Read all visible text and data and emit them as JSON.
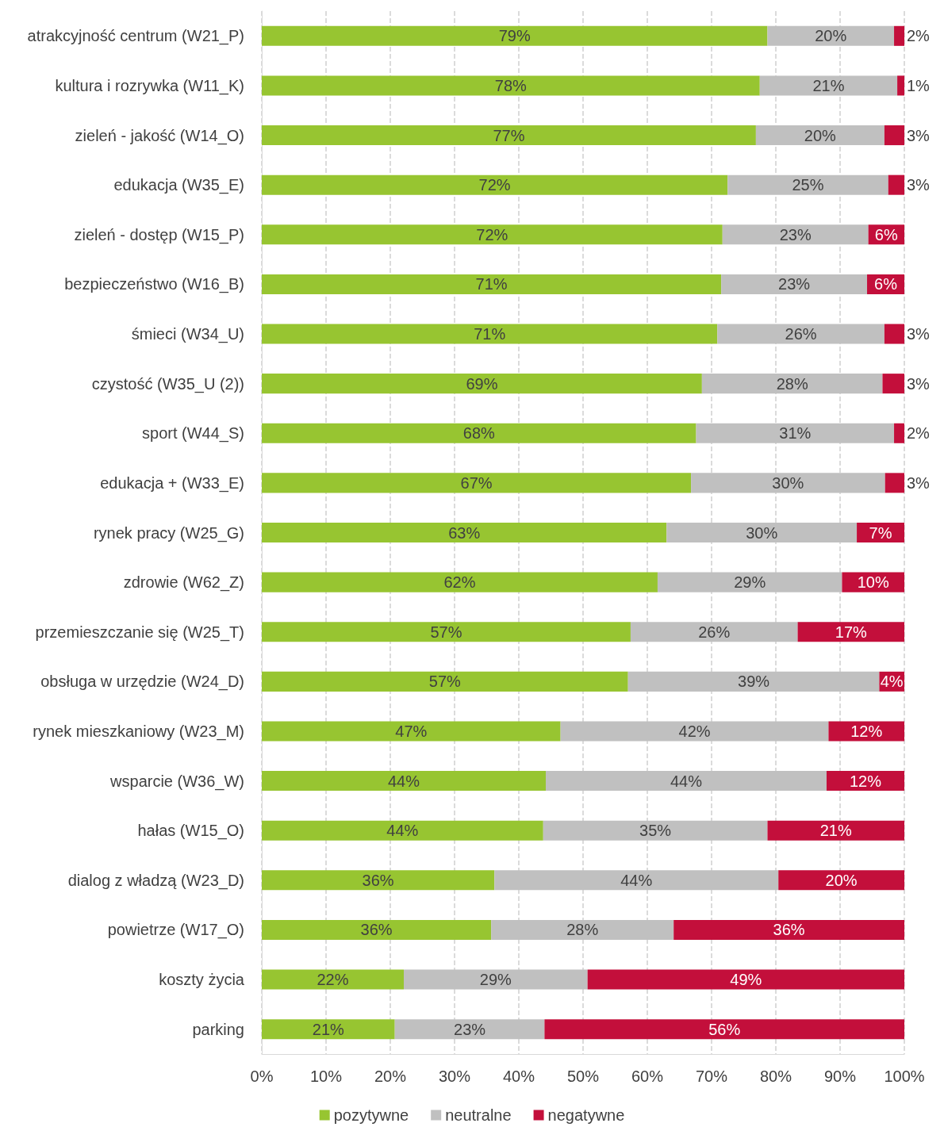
{
  "chart_data": {
    "type": "bar",
    "orientation": "horizontal",
    "stacked": true,
    "grid": "x",
    "legend": "bottom",
    "categories": [
      "atrakcyjność centrum (W21_P)",
      "kultura i rozrywka (W11_K)",
      "zieleń - jakość (W14_O)",
      "edukacja (W35_E)",
      "zieleń - dostęp (W15_P)",
      "bezpieczeństwo (W16_B)",
      "śmieci (W34_U)",
      "czystość (W35_U (2))",
      "sport (W44_S)",
      "edukacja + (W33_E)",
      "rynek pracy (W25_G)",
      "zdrowie (W62_Z)",
      "przemieszczanie się (W25_T)",
      "obsługa w urzędzie (W24_D)",
      "rynek mieszkaniowy (W23_M)",
      "wsparcie (W36_W)",
      "hałas (W15_O)",
      "dialog z władzą (W23_D)",
      "powietrze (W17_O)",
      "koszty życia",
      "parking"
    ],
    "series": [
      {
        "name": "pozytywne",
        "color": "#97c531",
        "values": [
          78.7,
          77.5,
          76.9,
          72.5,
          71.7,
          71.5,
          70.9,
          68.5,
          67.6,
          66.8,
          63.0,
          61.6,
          57.4,
          57.0,
          46.5,
          44.2,
          43.8,
          36.2,
          35.7,
          22.1,
          20.7
        ],
        "value_labels": [
          "79%",
          "78%",
          "77%",
          "72%",
          "72%",
          "71%",
          "71%",
          "69%",
          "68%",
          "67%",
          "63%",
          "62%",
          "57%",
          "57%",
          "47%",
          "44%",
          "44%",
          "36%",
          "36%",
          "22%",
          "21%"
        ]
      },
      {
        "name": "neutralne",
        "color": "#c0c0c0",
        "values": [
          19.7,
          21.4,
          20.0,
          25.0,
          22.7,
          22.7,
          26.0,
          28.1,
          30.8,
          30.2,
          29.6,
          28.7,
          26.0,
          39.1,
          41.7,
          43.7,
          34.9,
          44.2,
          28.4,
          28.6,
          23.3
        ],
        "value_labels": [
          "20%",
          "21%",
          "20%",
          "25%",
          "23%",
          "23%",
          "26%",
          "28%",
          "31%",
          "30%",
          "30%",
          "29%",
          "26%",
          "39%",
          "42%",
          "44%",
          "35%",
          "44%",
          "28%",
          "29%",
          "23%"
        ]
      },
      {
        "name": "negatywne",
        "color": "#c30f3b",
        "values": [
          1.6,
          1.1,
          3.1,
          2.5,
          5.6,
          5.8,
          3.1,
          3.4,
          1.6,
          3.0,
          7.4,
          9.7,
          16.6,
          3.9,
          11.8,
          12.1,
          21.3,
          19.6,
          35.9,
          49.3,
          56.0
        ],
        "value_labels": [
          "2%",
          "1%",
          "3%",
          "3%",
          "6%",
          "6%",
          "3%",
          "3%",
          "2%",
          "3%",
          "7%",
          "10%",
          "17%",
          "4%",
          "12%",
          "12%",
          "21%",
          "20%",
          "36%",
          "49%",
          "56%"
        ]
      }
    ],
    "xlim": [
      0,
      100
    ],
    "xticks": [
      {
        "value": 0,
        "label": "0%"
      },
      {
        "value": 10,
        "label": "10%"
      },
      {
        "value": 20,
        "label": "20%"
      },
      {
        "value": 30,
        "label": "30%"
      },
      {
        "value": 40,
        "label": "40%"
      },
      {
        "value": 50,
        "label": "50%"
      },
      {
        "value": 60,
        "label": "60%"
      },
      {
        "value": 70,
        "label": "70%"
      },
      {
        "value": 80,
        "label": "80%"
      },
      {
        "value": 90,
        "label": "90%"
      },
      {
        "value": 100,
        "label": "100%"
      }
    ]
  }
}
